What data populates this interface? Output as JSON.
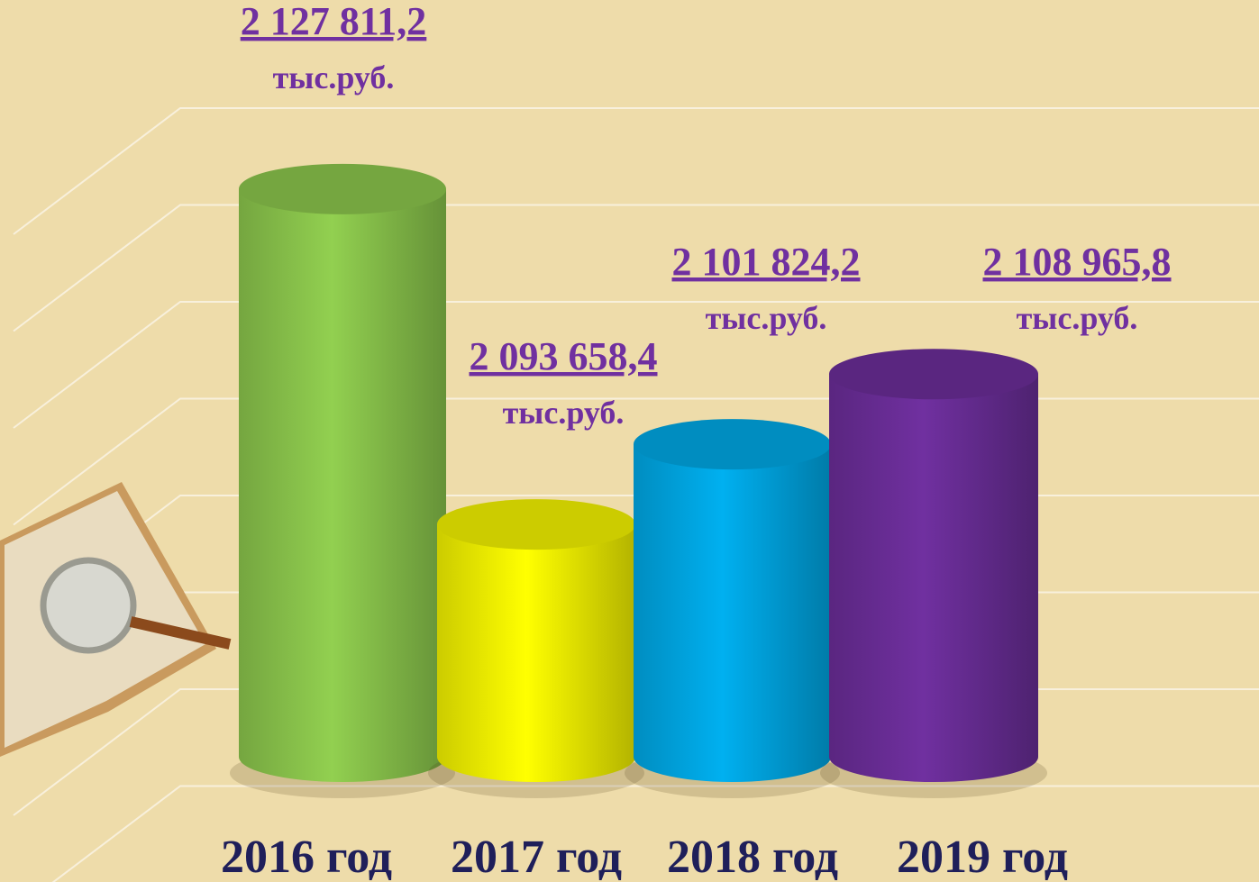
{
  "chart_data": {
    "type": "cylinder",
    "categories": [
      "2016 год",
      "2017 год",
      "2018 год",
      "2019 год"
    ],
    "values": [
      2127811.2,
      2093658.4,
      2101824.2,
      2108965.8
    ],
    "value_labels": [
      "2 127 811,2",
      "2 093 658,4",
      "2 101 824,2",
      "2 108 965,8"
    ],
    "value_unit": "тыс.руб.",
    "colors": [
      "#92d050",
      "#ffff00",
      "#00b0f0",
      "#7030a0"
    ],
    "ylim": [
      2070000,
      2140000
    ]
  }
}
